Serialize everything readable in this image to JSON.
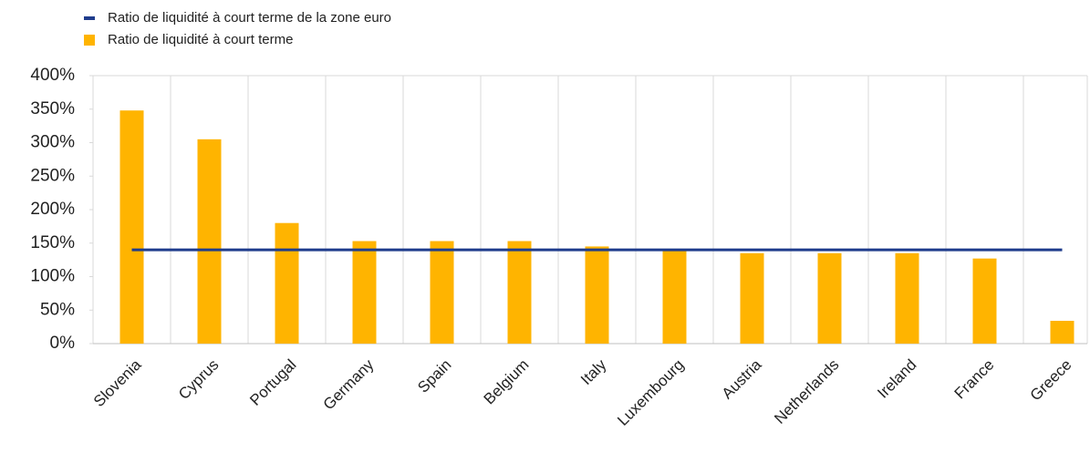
{
  "chart_data": {
    "type": "bar",
    "categories": [
      "Slovenia",
      "Cyprus",
      "Portugal",
      "Germany",
      "Spain",
      "Belgium",
      "Italy",
      "Luxembourg",
      "Austria",
      "Netherlands",
      "Ireland",
      "France",
      "Greece"
    ],
    "series": [
      {
        "name": "Ratio de liquidité à court terme de la zone euro",
        "type": "line",
        "color": "#1f3c8c",
        "values": [
          140,
          140,
          140,
          140,
          140,
          140,
          140,
          140,
          140,
          140,
          140,
          140,
          140
        ]
      },
      {
        "name": "Ratio de liquidité à court terme",
        "type": "bar",
        "color": "#ffb400",
        "values": [
          348,
          305,
          180,
          153,
          153,
          153,
          145,
          140,
          135,
          135,
          135,
          127,
          34
        ]
      }
    ],
    "ylim": [
      0,
      400
    ],
    "yticks": [
      {
        "value": 0,
        "label": "0%"
      },
      {
        "value": 50,
        "label": "50%"
      },
      {
        "value": 100,
        "label": "100%"
      },
      {
        "value": 150,
        "label": "150%"
      },
      {
        "value": 200,
        "label": "200%"
      },
      {
        "value": 250,
        "label": "250%"
      },
      {
        "value": 300,
        "label": "300%"
      },
      {
        "value": 350,
        "label": "350%"
      },
      {
        "value": 400,
        "label": "400%"
      }
    ],
    "legend": "top-left"
  }
}
